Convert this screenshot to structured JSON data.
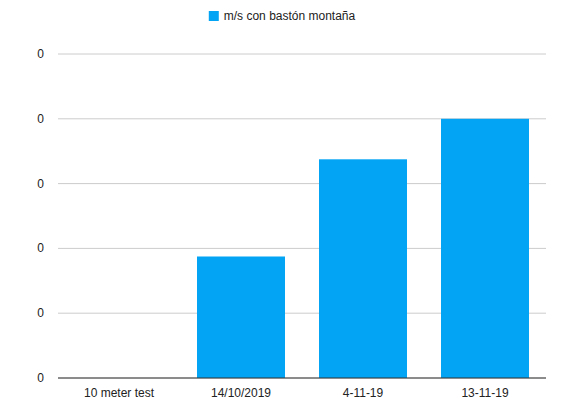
{
  "chart_data": {
    "type": "bar",
    "categories": [
      "10 meter test",
      "14/10/2019",
      "4-11-19",
      "13-11-19"
    ],
    "series": [
      {
        "name": "m/s con bastón montaña",
        "color": "#03a4f4",
        "values": [
          null,
          0.15,
          0.27,
          0.32
        ]
      }
    ],
    "ylim": [
      0,
      0.4
    ],
    "yticks": [
      {
        "value": 0,
        "label": "0"
      },
      {
        "value": 0.08,
        "label": "0"
      },
      {
        "value": 0.16,
        "label": "0"
      },
      {
        "value": 0.24,
        "label": "0"
      },
      {
        "value": 0.32,
        "label": "0"
      },
      {
        "value": 0.4,
        "label": "0"
      }
    ],
    "grid": true,
    "legend": "top"
  }
}
